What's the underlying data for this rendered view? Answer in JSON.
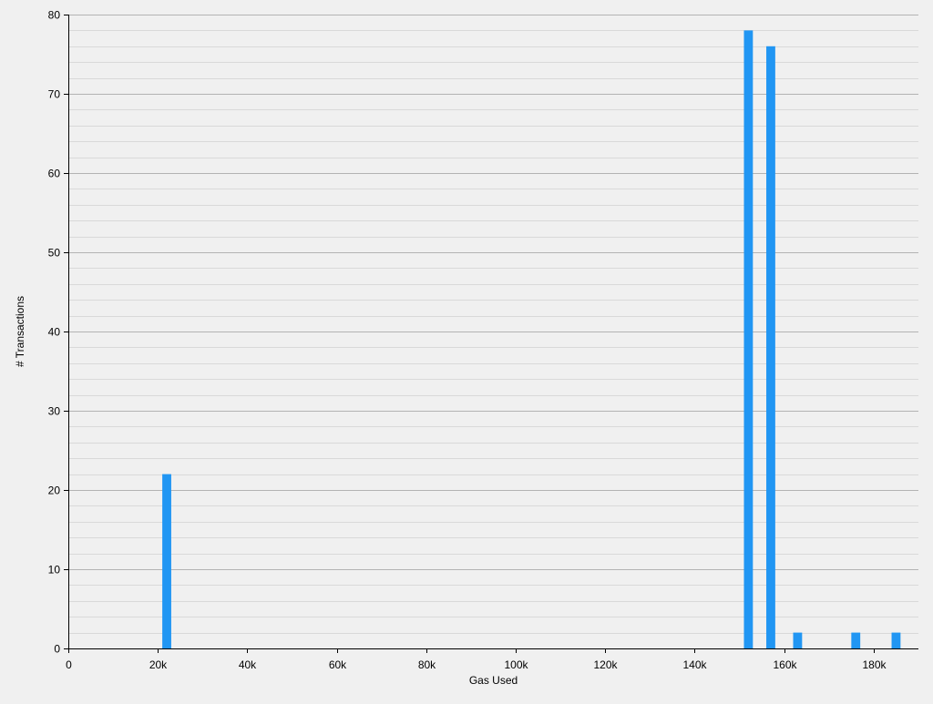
{
  "colors": {
    "background": "#f0f0f0",
    "bar": "#2196f3",
    "major_grid": "#b3b3b3",
    "minor_grid": "#d9d9d9",
    "axis": "#000000"
  },
  "chart_data": {
    "type": "bar",
    "title": "",
    "xlabel": "Gas Used",
    "ylabel": "# Transactions",
    "xlim": [
      0,
      190000
    ],
    "ylim": [
      0,
      80
    ],
    "bin_width": 2000,
    "x_ticks": [
      {
        "value": 0,
        "label": "0"
      },
      {
        "value": 20000,
        "label": "20k"
      },
      {
        "value": 40000,
        "label": "40k"
      },
      {
        "value": 60000,
        "label": "60k"
      },
      {
        "value": 80000,
        "label": "80k"
      },
      {
        "value": 100000,
        "label": "100k"
      },
      {
        "value": 120000,
        "label": "120k"
      },
      {
        "value": 140000,
        "label": "140k"
      },
      {
        "value": 160000,
        "label": "160k"
      },
      {
        "value": 180000,
        "label": "180k"
      }
    ],
    "y_ticks": [
      {
        "value": 0,
        "label": "0"
      },
      {
        "value": 10,
        "label": "10"
      },
      {
        "value": 20,
        "label": "20"
      },
      {
        "value": 30,
        "label": "30"
      },
      {
        "value": 40,
        "label": "40"
      },
      {
        "value": 50,
        "label": "50"
      },
      {
        "value": 60,
        "label": "60"
      },
      {
        "value": 70,
        "label": "70"
      },
      {
        "value": 80,
        "label": "80"
      }
    ],
    "y_minor_step": 2,
    "grid": true,
    "bars": [
      {
        "x": 22000,
        "value": 22
      },
      {
        "x": 152000,
        "value": 78
      },
      {
        "x": 157000,
        "value": 76
      },
      {
        "x": 163000,
        "value": 2
      },
      {
        "x": 176000,
        "value": 2
      },
      {
        "x": 185000,
        "value": 2
      }
    ]
  }
}
